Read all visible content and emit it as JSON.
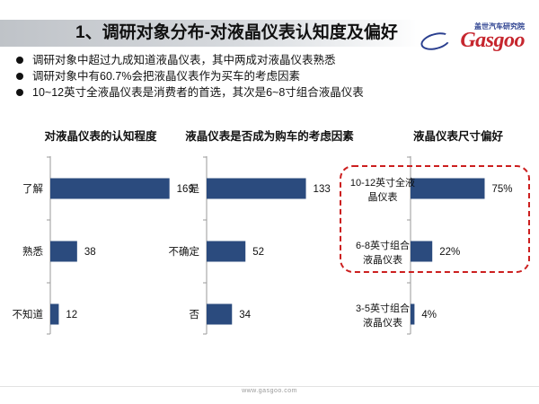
{
  "header": {
    "title": "1、调研对象分布-对液晶仪表认知度及偏好"
  },
  "logo": {
    "cn": "盖世汽车研究院",
    "en": "Gasgoo"
  },
  "bullets": [
    "调研对象中超过九成知道液晶仪表，其中两成对液晶仪表熟悉",
    "调研对象中有60.7%会把液晶仪表作为买车的考虑因素",
    "10~12英寸全液晶仪表是消费者的首选，其次是6~8寸组合液晶仪表"
  ],
  "colors": {
    "bar": "#2b4b7e",
    "highlight": "#cc1f1f",
    "axis": "#9a9a9a"
  },
  "chart_data": [
    {
      "type": "bar",
      "orientation": "horizontal",
      "title": "对液晶仪表的认知程度",
      "categories": [
        "了解",
        "熟悉",
        "不知道"
      ],
      "values": [
        169,
        38,
        12
      ],
      "labels": [
        "169",
        "38",
        "12"
      ],
      "xlim": [
        0,
        200
      ]
    },
    {
      "type": "bar",
      "orientation": "horizontal",
      "title": "液晶仪表是否成为购车的考虑因素",
      "categories": [
        "是",
        "不确定",
        "否"
      ],
      "values": [
        133,
        52,
        34
      ],
      "labels": [
        "133",
        "52",
        "34"
      ],
      "xlim": [
        0,
        160
      ]
    },
    {
      "type": "bar",
      "orientation": "horizontal",
      "title": "液晶仪表尺寸偏好",
      "categories": [
        "10-12英寸全液晶仪表",
        "6-8英寸组合液晶仪表",
        "3-5英寸组合液晶仪表"
      ],
      "values": [
        75,
        22,
        4
      ],
      "labels": [
        "75%",
        "22%",
        "4%"
      ],
      "xlim": [
        0,
        100
      ],
      "highlighted": [
        "10-12英寸全液晶仪表",
        "6-8英寸组合液晶仪表"
      ]
    }
  ],
  "footer": {
    "url": "www.gasgoo.com"
  }
}
